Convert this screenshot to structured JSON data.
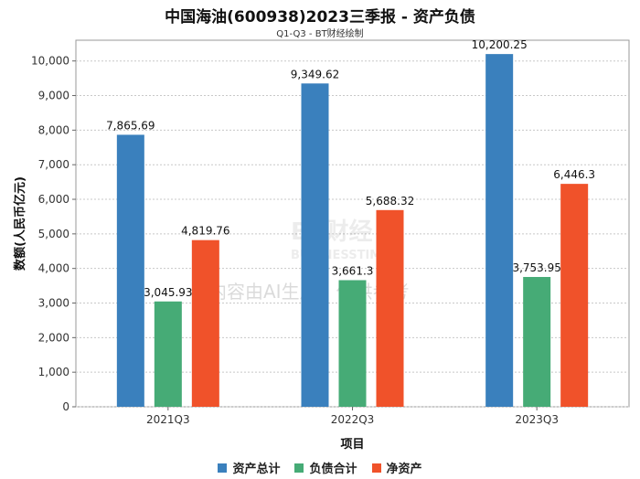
{
  "chart_data": {
    "type": "bar",
    "title": "中国海油(600938)2023三季报 - 资产负债",
    "subtitle": "Q1-Q3 - BT财经绘制",
    "xlabel": "项目",
    "ylabel": "数额(人民币亿元)",
    "categories": [
      "2021Q3",
      "2022Q3",
      "2023Q3"
    ],
    "ylim": [
      0,
      10600
    ],
    "yticks": [
      0,
      1000,
      2000,
      3000,
      4000,
      5000,
      6000,
      7000,
      8000,
      9000,
      10000
    ],
    "ytick_labels": [
      "0",
      "1,000",
      "2,000",
      "3,000",
      "4,000",
      "5,000",
      "6,000",
      "7,000",
      "8,000",
      "9,000",
      "10,000"
    ],
    "series": [
      {
        "name": "资产总计",
        "color": "#3a80bd",
        "values": [
          7865.69,
          9349.62,
          10200.25
        ],
        "labels": [
          "7,865.69",
          "9,349.62",
          "10,200.25"
        ]
      },
      {
        "name": "负债合计",
        "color": "#46ab76",
        "values": [
          3045.93,
          3661.3,
          3753.95
        ],
        "labels": [
          "3,045.93",
          "3,661.3",
          "3,753.95"
        ]
      },
      {
        "name": "净资产",
        "color": "#f0522a",
        "values": [
          4819.76,
          5688.32,
          6446.3
        ],
        "labels": [
          "4,819.76",
          "5,688.32",
          "6,446.3"
        ]
      }
    ],
    "legend_position": "bottom",
    "watermark": {
      "brand": "BT财经",
      "brand_en": "BUSINESSTIMES",
      "notice": "内容由AI生成，仅供参考"
    }
  }
}
